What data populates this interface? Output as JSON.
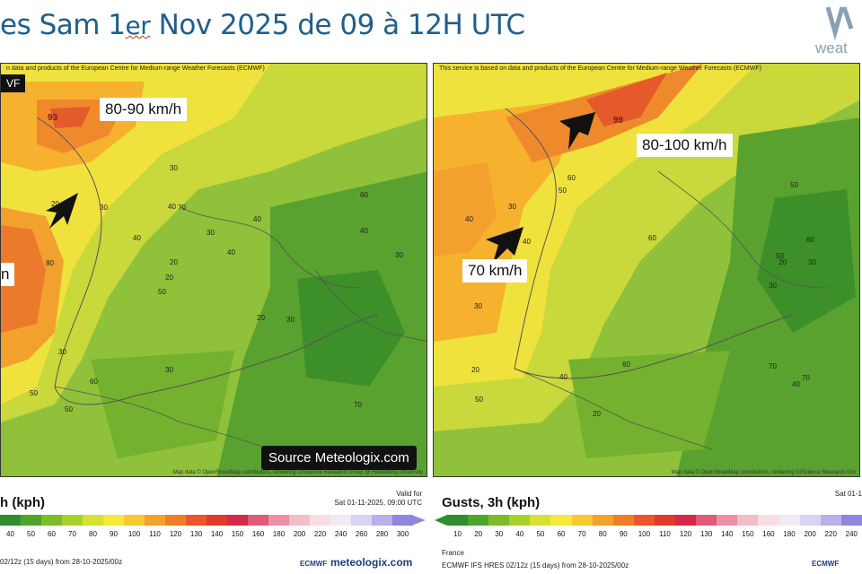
{
  "header": {
    "title_part1": "es  Sam 1",
    "title_er": "er",
    "title_part2": " Nov 2025 de 09 à 12H UTC",
    "logo_text": "weat"
  },
  "left_map": {
    "notice": "n data and products of the European Centre for Medium-range Weather Forecasts (ECMWF)",
    "badge": "VF",
    "callout_main": "80-90 km/h",
    "callout_side": "n",
    "peak_value": "93",
    "source_label": "Source Meteologix.com",
    "attribution": "Map data © OpenStreetMap contributors, rendering GIScience Research Group @ Heidelberg University",
    "contour_labels": [
      "70",
      "80",
      "60",
      "50",
      "40",
      "50",
      "40",
      "30",
      "30",
      "40",
      "50",
      "60",
      "70",
      "40",
      "30",
      "20",
      "30",
      "30",
      "20",
      "40",
      "20",
      "30",
      "20",
      "30"
    ]
  },
  "right_map": {
    "notice": "This service is based on data and products of the European Centre for Medium-range Weather Forecasts (ECMWF)",
    "callout_main": "80-100 km/h",
    "callout_secondary": "70 km/h",
    "peak_value": "99",
    "attribution": "Map data © OpenStreetMap contributors, rendering GIScience Research Gro",
    "contour_labels": [
      "70",
      "60",
      "70",
      "60",
      "50",
      "60",
      "50",
      "40",
      "50",
      "40",
      "30",
      "40",
      "30",
      "20",
      "20",
      "30",
      "40",
      "50",
      "60",
      "20",
      "30"
    ]
  },
  "left_legend": {
    "title": "h (kph)",
    "valid_label": "Valid for",
    "valid_time": "Sat 01-11-2025, 09:00 UTC",
    "ticks": [
      "40",
      "50",
      "60",
      "70",
      "80",
      "90",
      "100",
      "110",
      "120",
      "130",
      "140",
      "150",
      "160",
      "180",
      "200",
      "220",
      "240",
      "260",
      "280",
      "300"
    ],
    "footer": "02/12z (15 days)  from  28-10-2025/00z",
    "ecmwf": "ECMWF",
    "meteologix": "meteologix.com"
  },
  "right_legend": {
    "title": "Gusts, 3h (kph)",
    "valid_time": "Sat 01-1",
    "ticks": [
      "10",
      "20",
      "30",
      "40",
      "50",
      "60",
      "70",
      "80",
      "90",
      "100",
      "110",
      "120",
      "130",
      "140",
      "150",
      "160",
      "180",
      "200",
      "220",
      "240"
    ],
    "country": "France",
    "footer": "ECMWF IFS HRES 0Z/12z (15 days)  from  28-10-2025/00z",
    "ecmwf": "ECMWF",
    "meteologix": "meteologix.com"
  },
  "colors": {
    "title": "#1f5f8b",
    "scale": [
      "#2f8f2f",
      "#4fa52a",
      "#7bbd2a",
      "#a9d12c",
      "#d6e232",
      "#f3ea3a",
      "#f7c92f",
      "#f4a22c",
      "#ef7d2b",
      "#e9562b",
      "#df3a2e",
      "#d42a4a",
      "#e25a7a",
      "#ef8fa5",
      "#f6bcc8",
      "#fadde4",
      "#f0eaf5",
      "#d9d3f0",
      "#b7b0ea",
      "#8f86e0"
    ]
  }
}
